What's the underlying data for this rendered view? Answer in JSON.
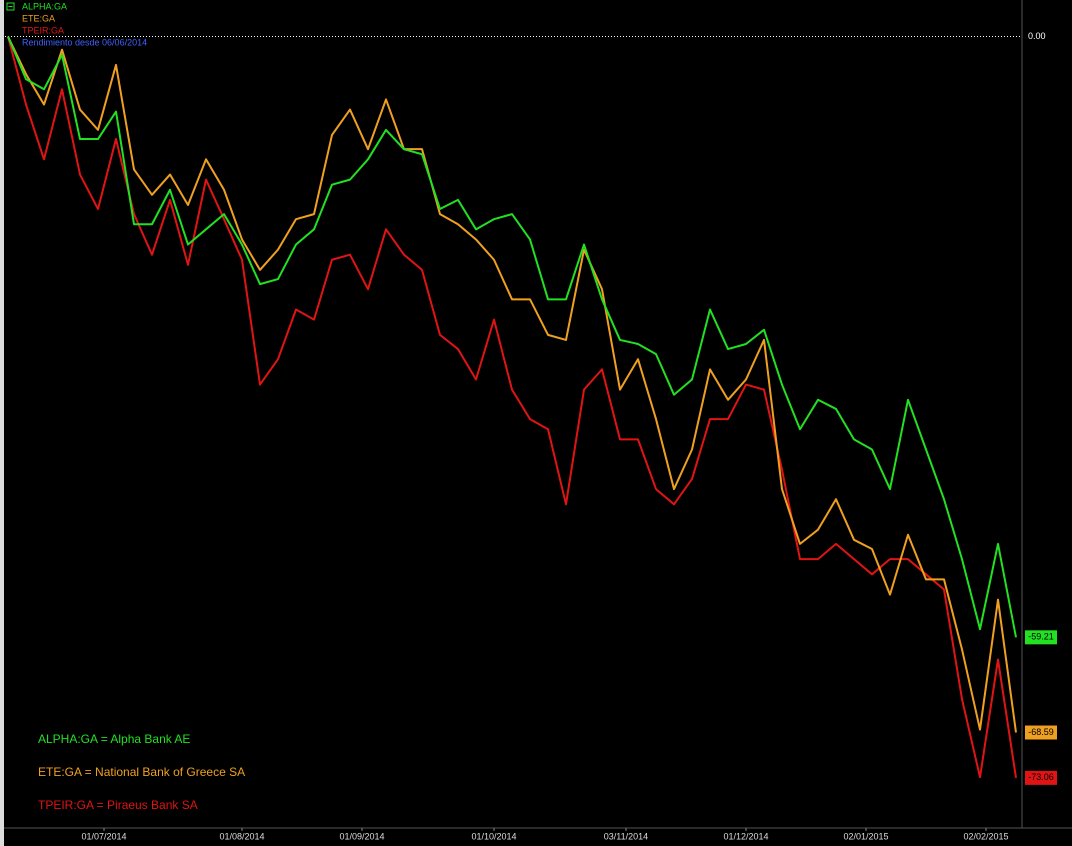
{
  "chart_data": {
    "type": "line",
    "subtitle": "Rendimiento desde 06/06/2014",
    "annotations": [
      "ALPHA:GA = Alpha Bank AE",
      "ETE:GA = National Bank of Greece SA",
      "TPEIR:GA = Piraeus Bank SA"
    ],
    "x": [
      0,
      3,
      6,
      9,
      12,
      15,
      18,
      21,
      24,
      27,
      30,
      33,
      36,
      39,
      42,
      45,
      48,
      51,
      54,
      57,
      60,
      63,
      66,
      69,
      72,
      75,
      78,
      81,
      84,
      87,
      90,
      93,
      96,
      99,
      102,
      105,
      108,
      111,
      114,
      117,
      120,
      123,
      126,
      129,
      132,
      135,
      138,
      141,
      144,
      147,
      150,
      153,
      156,
      159,
      162,
      165,
      168
    ],
    "xlim": [
      -0.5,
      169
    ],
    "xticks": [
      {
        "value": 16,
        "label": "01/07/2014"
      },
      {
        "value": 39,
        "label": "01/08/2014"
      },
      {
        "value": 59,
        "label": "01/09/2014"
      },
      {
        "value": 81,
        "label": "01/10/2014"
      },
      {
        "value": 103,
        "label": "03/11/2014"
      },
      {
        "value": 123,
        "label": "01/12/2014"
      },
      {
        "value": 143,
        "label": "02/01/2015"
      },
      {
        "value": 163,
        "label": "02/02/2015"
      }
    ],
    "ylim": [
      -78,
      3.6
    ],
    "yticks": [
      {
        "value": 0,
        "label": "0.00"
      }
    ],
    "series": [
      {
        "name": "ALPHA:GA",
        "color": "#22e022",
        "values": [
          0,
          -4.2,
          -5.2,
          -1.8,
          -10.1,
          -10.1,
          -7.4,
          -18.5,
          -18.5,
          -15.1,
          -20.5,
          -19.0,
          -17.5,
          -20.5,
          -24.4,
          -23.9,
          -20.5,
          -19.0,
          -14.6,
          -14.1,
          -12.1,
          -9.2,
          -11.1,
          -11.6,
          -17.0,
          -16.1,
          -19.0,
          -18.0,
          -17.5,
          -20.0,
          -25.9,
          -25.9,
          -20.5,
          -25.9,
          -29.9,
          -30.3,
          -31.3,
          -35.3,
          -33.8,
          -26.9,
          -30.8,
          -30.3,
          -28.9,
          -34.3,
          -38.7,
          -35.8,
          -36.7,
          -39.7,
          -40.7,
          -44.6,
          -35.8,
          -40.7,
          -45.6,
          -51.5,
          -58.4,
          -50.0,
          -59.21
        ],
        "value_labels": [
          null,
          null,
          null,
          null,
          null,
          null,
          null,
          null,
          null,
          null,
          null,
          null,
          null,
          null,
          null,
          null,
          null,
          null,
          null,
          null,
          null,
          null,
          null,
          null,
          null,
          null,
          null,
          null,
          null,
          null,
          null,
          null,
          null,
          null,
          null,
          null,
          null,
          null,
          null,
          null,
          null,
          null,
          null,
          null,
          null,
          null,
          null,
          null,
          null,
          null,
          null,
          null,
          null,
          null,
          null,
          null,
          "-59.21"
        ]
      },
      {
        "name": "ETE:GA",
        "color": "#f0a020",
        "values": [
          0,
          -3.7,
          -6.7,
          -1.3,
          -7.2,
          -9.2,
          -2.8,
          -13.1,
          -15.6,
          -13.6,
          -16.6,
          -12.1,
          -15.1,
          -20.0,
          -23.0,
          -21.0,
          -18.0,
          -17.5,
          -9.7,
          -7.2,
          -11.1,
          -6.2,
          -11.1,
          -11.1,
          -17.5,
          -18.5,
          -20.0,
          -22.0,
          -25.9,
          -25.9,
          -29.4,
          -29.9,
          -21.0,
          -24.9,
          -34.8,
          -31.8,
          -37.7,
          -44.6,
          -40.7,
          -32.8,
          -35.8,
          -33.8,
          -29.9,
          -44.6,
          -50.0,
          -48.6,
          -45.6,
          -49.6,
          -50.5,
          -55.0,
          -49.1,
          -53.5,
          -53.5,
          -60.4,
          -68.3,
          -55.5,
          -68.59
        ],
        "value_labels": [
          null,
          null,
          null,
          null,
          null,
          null,
          null,
          null,
          null,
          null,
          null,
          null,
          null,
          null,
          null,
          null,
          null,
          null,
          null,
          null,
          null,
          null,
          null,
          null,
          null,
          null,
          null,
          null,
          null,
          null,
          null,
          null,
          null,
          null,
          null,
          null,
          null,
          null,
          null,
          null,
          null,
          null,
          null,
          null,
          null,
          null,
          null,
          null,
          null,
          null,
          null,
          null,
          null,
          null,
          null,
          null,
          "-68.59"
        ]
      },
      {
        "name": "TPEIR:GA",
        "color": "#e01414",
        "values": [
          0,
          -6.7,
          -12.1,
          -5.2,
          -13.6,
          -17.0,
          -10.1,
          -17.5,
          -21.5,
          -16.1,
          -22.5,
          -14.1,
          -18.0,
          -22.0,
          -34.3,
          -31.8,
          -26.9,
          -27.9,
          -22.0,
          -21.5,
          -24.9,
          -19.0,
          -21.5,
          -23.0,
          -29.4,
          -30.8,
          -33.8,
          -27.9,
          -34.8,
          -37.7,
          -38.7,
          -46.1,
          -34.8,
          -32.8,
          -39.7,
          -39.7,
          -44.6,
          -46.1,
          -43.6,
          -37.7,
          -37.7,
          -34.3,
          -34.8,
          -42.7,
          -51.5,
          -51.5,
          -50.0,
          -51.5,
          -53.0,
          -51.5,
          -51.5,
          -53.0,
          -54.5,
          -65.3,
          -73.0,
          -61.4,
          -73.06
        ],
        "value_labels": [
          null,
          null,
          null,
          null,
          null,
          null,
          null,
          null,
          null,
          null,
          null,
          null,
          null,
          null,
          null,
          null,
          null,
          null,
          null,
          null,
          null,
          null,
          null,
          null,
          null,
          null,
          null,
          null,
          null,
          null,
          null,
          null,
          null,
          null,
          null,
          null,
          null,
          null,
          null,
          null,
          null,
          null,
          null,
          null,
          null,
          null,
          null,
          null,
          null,
          null,
          null,
          null,
          null,
          null,
          null,
          null,
          "-73.06"
        ]
      }
    ]
  }
}
